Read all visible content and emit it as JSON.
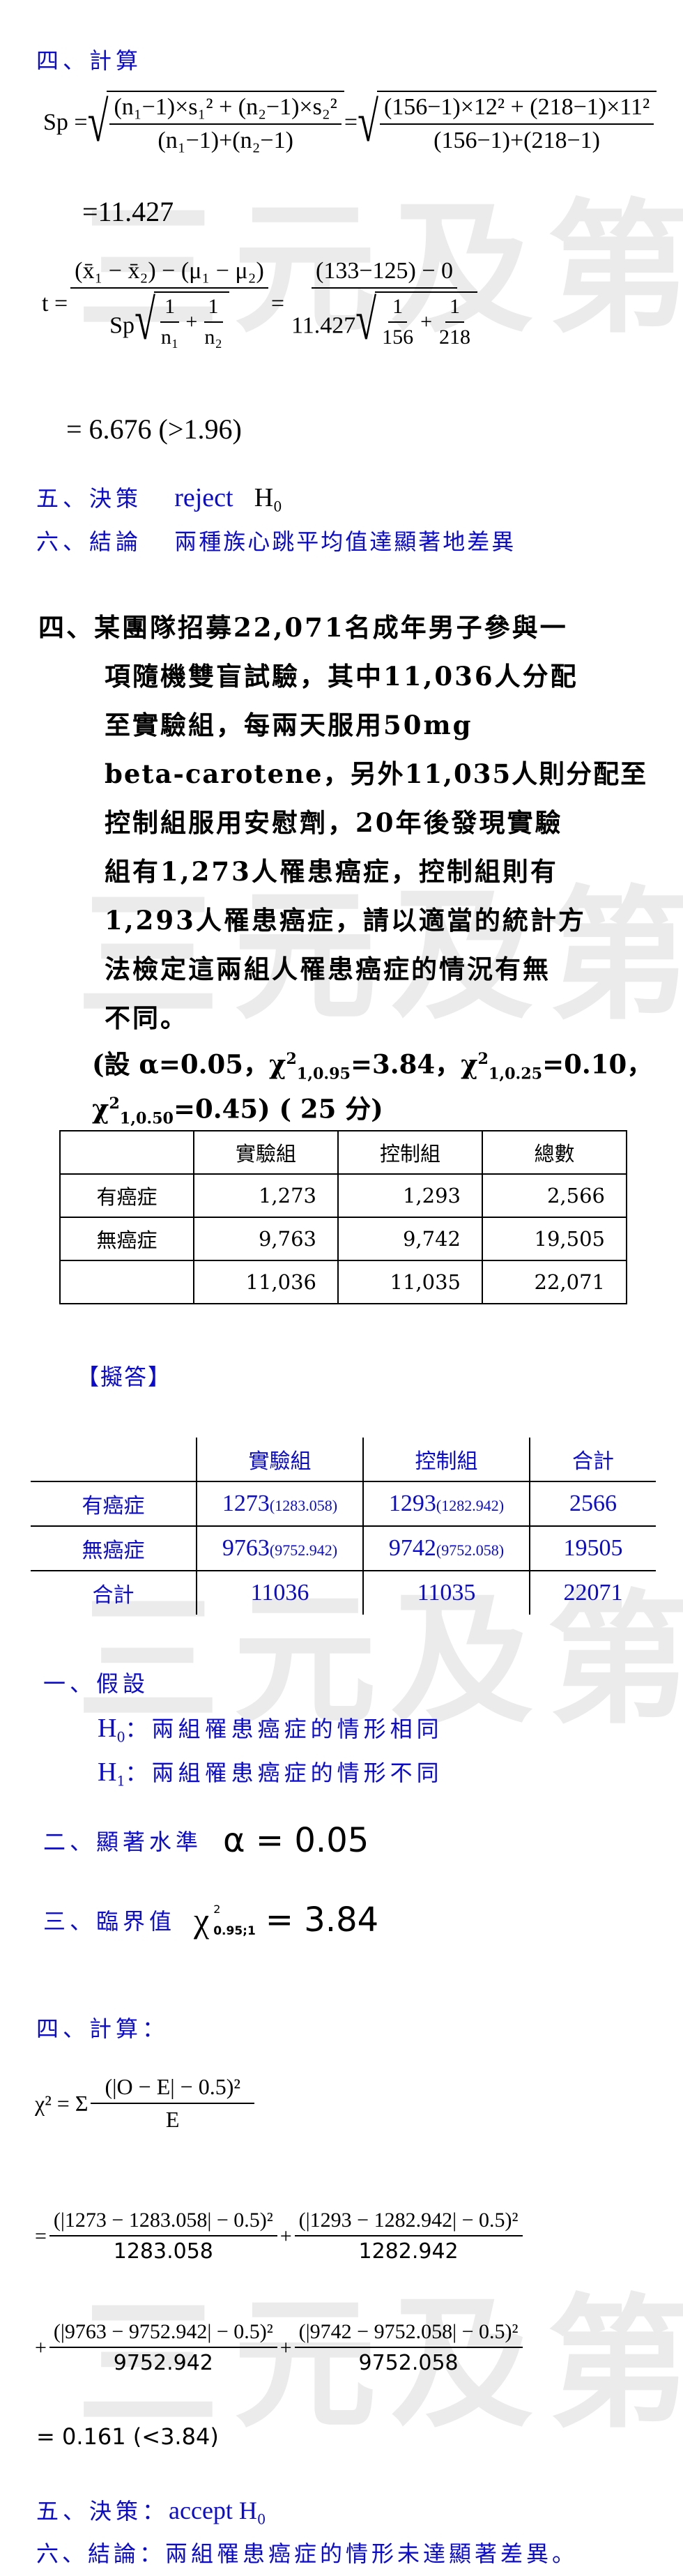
{
  "watermark": "三元及第",
  "part1": {
    "step4_label": "四、計算",
    "sp": {
      "lhs": "Sp =",
      "num": "(n₁−1)×s₁² + (n₂−1)×s₂²",
      "den": "(n₁−1)+(n₂−1)",
      "eq": "=",
      "num2": "(156−1)×12² + (218−1)×11²",
      "den2": "(156−1)+(218−1)"
    },
    "sp_result": "=11.427",
    "t": {
      "lhs": "t =",
      "num": "(x̄₁ − x̄₂) − (μ₁ − μ₂)",
      "den_prefix": "Sp",
      "one": "1",
      "plus": "+",
      "n1": "n₁",
      "n2": "n₂",
      "eq": "=",
      "num2": "(133−125) − 0",
      "den2_prefix": "11.427",
      "d1": "156",
      "d2": "218"
    },
    "t_result": "= 6.676  (>1.96)",
    "step5_label": "五、決策",
    "step5_value": "reject",
    "step5_h": "H",
    "step5_sub": "0",
    "step6_label": "六、結論",
    "step6_value": "兩種族心跳平均值達顯著地差異"
  },
  "question": {
    "lines": [
      "四、某團隊招募22,071名成年男子參與一",
      "項隨機雙盲試驗，其中11,036人分配",
      "至實驗組，每兩天服用50mg",
      "beta-carotene，另外11,035人則分配至",
      "控制組服用安慰劑，20年後發現實驗",
      "組有1,273人罹患癌症，控制組則有",
      "1,293人罹患癌症，請以適當的統計方",
      "法檢定這兩組人罹患癌症的情況有無",
      "不同。"
    ],
    "given": {
      "alpha": "(設 α=0.05，",
      "chi": "χ",
      "sq": "2",
      "terms": [
        {
          "sub": "1,0.95",
          "val": "=3.84，"
        },
        {
          "sub": "1,0.25",
          "val": "=0.10，"
        },
        {
          "sub": "1,0.50",
          "val": "=0.45)"
        }
      ],
      "points": " ( 25 分)"
    },
    "table": {
      "headers": [
        "",
        "實驗組",
        "控制組",
        "總數"
      ],
      "rows": [
        [
          "有癌症",
          "1,273",
          "1,293",
          "2,566"
        ],
        [
          "無癌症",
          "9,763",
          "9,742",
          "19,505"
        ],
        [
          "",
          "11,036",
          "11,035",
          "22,071"
        ]
      ]
    }
  },
  "answer": {
    "label": "【擬答】",
    "table": {
      "headers": [
        "",
        "實驗組",
        "控制組",
        "合計"
      ],
      "rows": [
        {
          "label": "有癌症",
          "c1": "1273",
          "e1": "(1283.058)",
          "c2": "1293",
          "e2": "(1282.942)",
          "total": "2566"
        },
        {
          "label": "無癌症",
          "c1": "9763",
          "e1": "(9752.942)",
          "c2": "9742",
          "e2": "(9752.058)",
          "total": "19505"
        },
        {
          "label": "合計",
          "c1": "11036",
          "e1": "",
          "c2": "11035",
          "e2": "",
          "total": "22071"
        }
      ]
    },
    "step1_label": "一、假設",
    "h0": {
      "h": "H",
      "sub": "0",
      "text": "：兩組罹患癌症的情形相同"
    },
    "h1": {
      "h": "H",
      "sub": "1",
      "text": "：兩組罹患癌症的情形不同"
    },
    "step2_label": "二、顯著水準",
    "step2_value": "α = 0.05",
    "step3_label": "三、臨界值",
    "step3_chi": "χ",
    "step3_sup": "2",
    "step3_sub": "0.95;1",
    "step3_value": "= 3.84",
    "step4_label": "四、計算：",
    "chi_formula": {
      "lhs": "χ² = Σ",
      "num": "(|O − E| − 0.5)²",
      "den": "E"
    },
    "terms": [
      {
        "op": "=",
        "num": "(|1273 − 1283.058| − 0.5)²",
        "den": "1283.058"
      },
      {
        "op": "+",
        "num": "(|1293 − 1282.942| − 0.5)²",
        "den": "1282.942"
      },
      {
        "op": "+",
        "num": "(|9763 − 9752.942| − 0.5)²",
        "den": "9752.942"
      },
      {
        "op": "+",
        "num": "(|9742 − 9752.058| − 0.5)²",
        "den": "9752.058"
      }
    ],
    "result": "= 0.161   (<3.84)",
    "step5_label": "五、決策：",
    "step5_value": "accept H",
    "step5_sub": "0",
    "step6_label": "六、結論：",
    "step6_value": "兩組罹患癌症的情形未達顯著差異。"
  }
}
